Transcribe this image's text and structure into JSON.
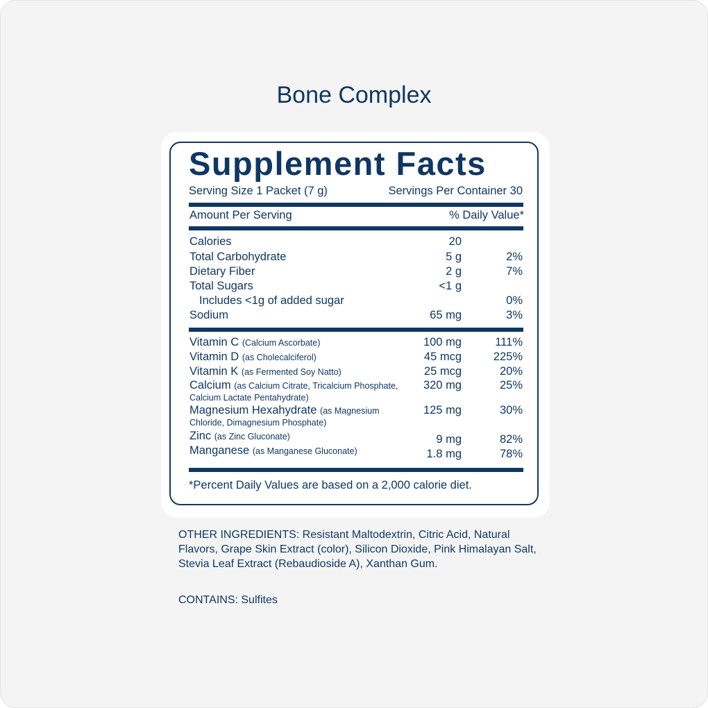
{
  "product_title": "Bone Complex",
  "label": {
    "heading": "Supplement Facts",
    "serving_size": "Serving Size 1 Packet (7 g)",
    "servings_per_container": "Servings Per Container 30",
    "amount_per_serving": "Amount Per Serving",
    "daily_value_header": "% Daily Value*",
    "nutrients": [
      {
        "name": "Calories",
        "amount": "20",
        "dv": ""
      },
      {
        "name": "Total Carbohydrate",
        "amount": "5 g",
        "dv": "2%"
      },
      {
        "name": "Dietary Fiber",
        "amount": "2 g",
        "dv": "7%"
      },
      {
        "name": "Total Sugars",
        "amount": "<1 g",
        "dv": ""
      },
      {
        "name": "Includes <1g of added sugar",
        "amount": "",
        "dv": "0%"
      },
      {
        "name": "Sodium",
        "amount": "65 mg",
        "dv": "3%"
      }
    ],
    "vitamins": [
      {
        "name": "Vitamin C",
        "source": "(Calcium Ascorbate)",
        "amount": "100 mg",
        "dv": "111%"
      },
      {
        "name": "Vitamin D",
        "source": "(as Cholecalciferol)",
        "amount": "45 mcg",
        "dv": "225%"
      },
      {
        "name": "Vitamin K",
        "source": "(as Fermented Soy Natto)",
        "amount": "25 mcg",
        "dv": "20%"
      },
      {
        "name": "Calcium",
        "source": "(as Calcium Citrate, Tricalcium Phosphate, Calcium Lactate Pentahydrate)",
        "amount": "320 mg",
        "dv": "25%"
      },
      {
        "name": "Magnesium Hexahydrate",
        "source": "(as Magnesium Chloride, Dimagnesium Phosphate)",
        "amount": "125 mg",
        "dv": "30%"
      },
      {
        "name": "Zinc",
        "source": "(as Zinc Gluconate)",
        "amount": "9 mg",
        "dv": "82%"
      },
      {
        "name": "Manganese",
        "source": "(as Manganese Gluconate)",
        "amount": "1.8 mg",
        "dv": "78%"
      }
    ],
    "footnote": "*Percent Daily Values are based on a 2,000 calorie diet."
  },
  "other_ingredients": "OTHER INGREDIENTS: Resistant Maltodextrin, Citric Acid, Natural Flavors, Grape Skin Extract (color), Silicon Dioxide, Pink Himalayan Salt, Stevia Leaf Extract (Rebaudioside A), Xanthan Gum.",
  "contains": "CONTAINS: Sulfites",
  "colors": {
    "brand": "#0f3763",
    "background": "#f4f4f4"
  }
}
